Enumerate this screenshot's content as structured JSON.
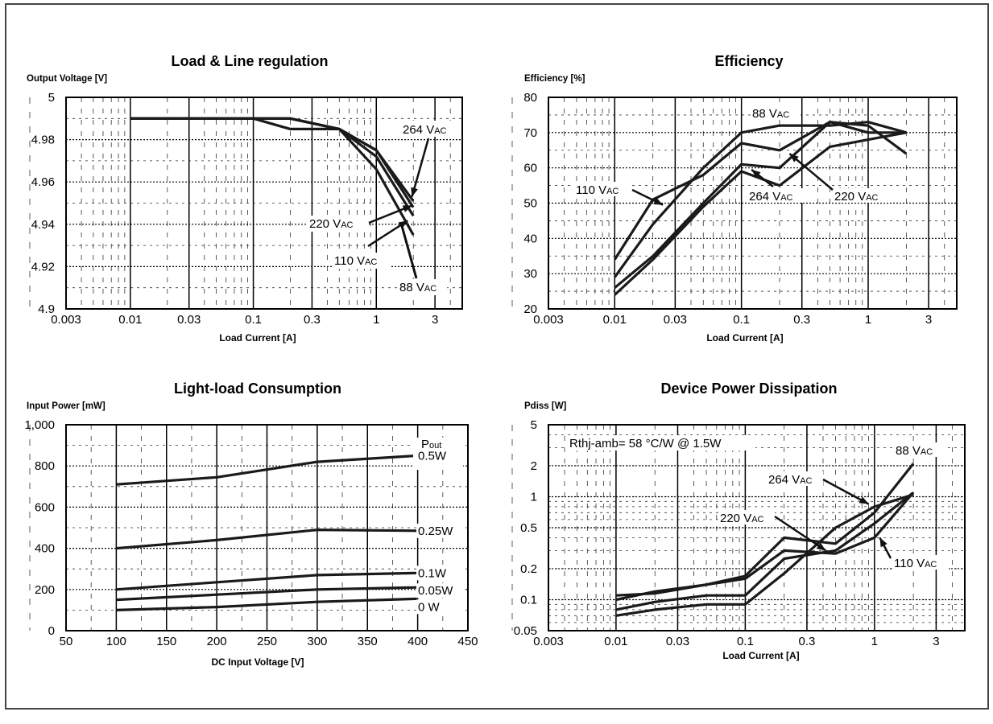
{
  "chart_data": [
    {
      "id": "reg",
      "type": "line",
      "title": "Load & Line regulation",
      "ylabel": "Output Voltage [V]",
      "xlabel": "Load Current [A]",
      "xscale": "log",
      "xlim": [
        0.003,
        5
      ],
      "ylim": [
        4.9,
        5
      ],
      "xticks": [
        0.003,
        0.01,
        0.03,
        0.1,
        0.3,
        1,
        3
      ],
      "xtick_labels": [
        "0.003",
        "0.01",
        "0.03",
        "0.1",
        "0.3",
        "1",
        "3"
      ],
      "yticks": [
        4.9,
        4.92,
        4.94,
        4.96,
        4.98,
        5
      ],
      "ytick_labels": [
        "4.9",
        "4.92",
        "4.94",
        "4.96",
        "4.98",
        "5"
      ],
      "series": [
        {
          "name": "88 VAC",
          "x": [
            0.01,
            0.1,
            0.2,
            0.5,
            1,
            2
          ],
          "y": [
            4.99,
            4.99,
            4.99,
            4.985,
            4.966,
            4.935
          ]
        },
        {
          "name": "110 VAC",
          "x": [
            0.01,
            0.1,
            0.2,
            0.5,
            1,
            2
          ],
          "y": [
            4.99,
            4.99,
            4.985,
            4.985,
            4.972,
            4.944
          ]
        },
        {
          "name": "220 VAC",
          "x": [
            0.01,
            0.1,
            0.2,
            0.5,
            1,
            2
          ],
          "y": [
            4.99,
            4.99,
            4.99,
            4.985,
            4.975,
            4.948
          ]
        },
        {
          "name": "264 VAC",
          "x": [
            0.01,
            0.1,
            0.2,
            0.5,
            1,
            2
          ],
          "y": [
            4.99,
            4.99,
            4.99,
            4.985,
            4.975,
            4.951
          ]
        }
      ],
      "annotations": [
        {
          "text": "264 V",
          "sub": "AC"
        },
        {
          "text": "220 V",
          "sub": "AC"
        },
        {
          "text": "110 V",
          "sub": "AC"
        },
        {
          "text": "88 V",
          "sub": "AC"
        }
      ]
    },
    {
      "id": "eff",
      "type": "line",
      "title": "Efficiency",
      "ylabel": "Efficiency [%]",
      "xlabel": "Load Current [A]",
      "xscale": "log",
      "xlim": [
        0.003,
        5
      ],
      "ylim": [
        20,
        80
      ],
      "xticks": [
        0.003,
        0.01,
        0.03,
        0.1,
        0.3,
        1,
        3
      ],
      "xtick_labels": [
        "0.003",
        "0.01",
        "0.03",
        "0.1",
        "0.3",
        "1",
        "3"
      ],
      "yticks": [
        20,
        30,
        40,
        50,
        60,
        70,
        80
      ],
      "ytick_labels": [
        "20",
        "30",
        "40",
        "50",
        "60",
        "70",
        "80"
      ],
      "series": [
        {
          "name": "88 VAC",
          "x": [
            0.01,
            0.02,
            0.05,
            0.1,
            0.2,
            0.5,
            1,
            2
          ],
          "y": [
            29,
            44,
            60,
            70,
            72,
            72,
            73,
            70
          ]
        },
        {
          "name": "110 VAC",
          "x": [
            0.01,
            0.02,
            0.05,
            0.1,
            0.2,
            0.5,
            1,
            2
          ],
          "y": [
            34,
            51,
            58,
            67,
            65,
            73,
            72,
            64
          ]
        },
        {
          "name": "220 VAC",
          "x": [
            0.01,
            0.02,
            0.05,
            0.1,
            0.2,
            0.5,
            1,
            2
          ],
          "y": [
            26,
            35,
            50,
            61,
            60,
            73,
            70,
            70
          ]
        },
        {
          "name": "264 VAC",
          "x": [
            0.01,
            0.02,
            0.05,
            0.1,
            0.2,
            0.5,
            1,
            2
          ],
          "y": [
            24,
            34,
            49,
            59,
            55,
            66,
            68,
            70
          ]
        }
      ],
      "annotations": [
        {
          "text": "88 V",
          "sub": "AC"
        },
        {
          "text": "110 V",
          "sub": "AC"
        },
        {
          "text": "264 V",
          "sub": "AC"
        },
        {
          "text": "220 V",
          "sub": "AC"
        }
      ]
    },
    {
      "id": "cons",
      "type": "line",
      "title": "Light-load Consumption",
      "ylabel": "Input Power [mW]",
      "xlabel": "DC Input Voltage [V]",
      "xscale": "linear",
      "xlim": [
        50,
        450
      ],
      "ylim": [
        0,
        1000
      ],
      "xticks": [
        50,
        100,
        150,
        200,
        250,
        300,
        350,
        400,
        450
      ],
      "xtick_labels": [
        "50",
        "100",
        "150",
        "200",
        "250",
        "300",
        "350",
        "400",
        "450"
      ],
      "yticks": [
        0,
        200,
        400,
        600,
        800,
        1000
      ],
      "ytick_labels": [
        "0",
        "200",
        "400",
        "600",
        "800",
        "1,000"
      ],
      "series": [
        {
          "name": "0.5W",
          "x": [
            100,
            200,
            300,
            400
          ],
          "y": [
            710,
            745,
            820,
            850
          ]
        },
        {
          "name": "0.25W",
          "x": [
            100,
            200,
            300,
            400
          ],
          "y": [
            400,
            440,
            490,
            485
          ]
        },
        {
          "name": "0.1W",
          "x": [
            100,
            200,
            300,
            400
          ],
          "y": [
            200,
            235,
            270,
            280
          ]
        },
        {
          "name": "0.05W",
          "x": [
            100,
            200,
            300,
            400
          ],
          "y": [
            150,
            175,
            200,
            210
          ]
        },
        {
          "name": "0 W",
          "x": [
            100,
            200,
            300,
            400
          ],
          "y": [
            100,
            115,
            140,
            155
          ]
        }
      ],
      "legend_title": "P",
      "legend_title_sub": "out"
    },
    {
      "id": "diss",
      "type": "line",
      "title": "Device Power Dissipation",
      "ylabel": "Pdiss [W]",
      "xlabel": "Load Current [A]",
      "xscale": "log",
      "yscale": "log",
      "xlim": [
        0.003,
        5
      ],
      "ylim": [
        0.05,
        5
      ],
      "xticks": [
        0.003,
        0.01,
        0.03,
        0.1,
        0.3,
        1,
        3
      ],
      "xtick_labels": [
        "0.003",
        "0.01",
        "0.03",
        "0.1",
        "0.3",
        "1",
        "3"
      ],
      "yticks": [
        0.05,
        0.1,
        0.2,
        0.5,
        1,
        2,
        5
      ],
      "ytick_labels": [
        "0.05",
        "0.1",
        "0.2",
        "0.5",
        "1",
        "2",
        "5"
      ],
      "series": [
        {
          "name": "88 VAC",
          "x": [
            0.01,
            0.02,
            0.05,
            0.1,
            0.2,
            0.5,
            1,
            2
          ],
          "y": [
            0.11,
            0.115,
            0.14,
            0.17,
            0.4,
            0.35,
            0.7,
            2.1
          ]
        },
        {
          "name": "110 VAC",
          "x": [
            0.01,
            0.02,
            0.05,
            0.1,
            0.2,
            0.5,
            1,
            2
          ],
          "y": [
            0.1,
            0.12,
            0.14,
            0.16,
            0.3,
            0.28,
            0.4,
            1.1
          ]
        },
        {
          "name": "220 VAC",
          "x": [
            0.01,
            0.02,
            0.05,
            0.1,
            0.2,
            0.5,
            1,
            2
          ],
          "y": [
            0.08,
            0.095,
            0.11,
            0.11,
            0.25,
            0.3,
            0.55,
            1.1
          ]
        },
        {
          "name": "264 VAC",
          "x": [
            0.01,
            0.02,
            0.05,
            0.1,
            0.2,
            0.5,
            1,
            2
          ],
          "y": [
            0.07,
            0.08,
            0.09,
            0.09,
            0.18,
            0.5,
            0.8,
            1.05
          ]
        }
      ],
      "note": "Rthj-amb= 58 °C/W @ 1.5W",
      "annotations": [
        {
          "text": "88 V",
          "sub": "AC"
        },
        {
          "text": "264 V",
          "sub": "AC"
        },
        {
          "text": "220 V",
          "sub": "AC"
        },
        {
          "text": "110 V",
          "sub": "AC"
        }
      ]
    }
  ]
}
